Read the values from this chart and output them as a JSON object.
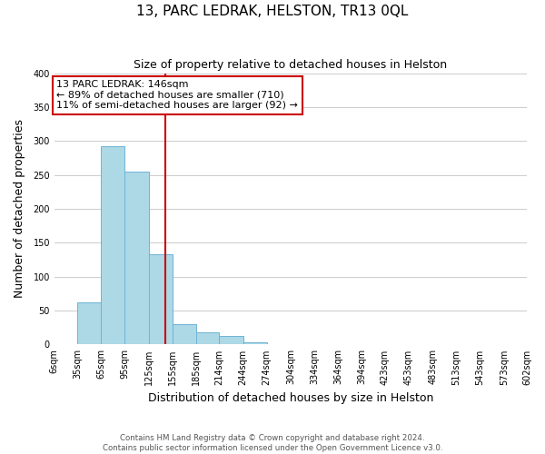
{
  "title": "13, PARC LEDRAK, HELSTON, TR13 0QL",
  "subtitle": "Size of property relative to detached houses in Helston",
  "xlabel": "Distribution of detached houses by size in Helston",
  "ylabel": "Number of detached properties",
  "bar_left_edges": [
    6,
    35,
    65,
    95,
    125,
    155,
    185,
    214,
    244,
    274,
    304,
    334,
    364,
    394,
    423,
    453,
    483,
    513,
    543,
    573
  ],
  "bar_widths": [
    29,
    30,
    30,
    30,
    30,
    30,
    29,
    30,
    30,
    30,
    30,
    30,
    30,
    29,
    30,
    30,
    30,
    30,
    30,
    29
  ],
  "bar_heights": [
    0,
    62,
    292,
    255,
    133,
    30,
    18,
    12,
    3,
    0,
    0,
    0,
    0,
    0,
    0,
    1,
    0,
    0,
    0,
    0
  ],
  "bar_color": "#add8e6",
  "bar_edgecolor": "#6cb4d8",
  "tick_labels": [
    "6sqm",
    "35sqm",
    "65sqm",
    "95sqm",
    "125sqm",
    "155sqm",
    "185sqm",
    "214sqm",
    "244sqm",
    "274sqm",
    "304sqm",
    "334sqm",
    "364sqm",
    "394sqm",
    "423sqm",
    "453sqm",
    "483sqm",
    "513sqm",
    "543sqm",
    "573sqm",
    "602sqm"
  ],
  "tick_positions": [
    6,
    35,
    65,
    95,
    125,
    155,
    185,
    214,
    244,
    274,
    304,
    334,
    364,
    394,
    423,
    453,
    483,
    513,
    543,
    573,
    602
  ],
  "ylim": [
    0,
    400
  ],
  "yticks": [
    0,
    50,
    100,
    150,
    200,
    250,
    300,
    350,
    400
  ],
  "vline_x": 146,
  "vline_color": "#cc0000",
  "annotation_line1": "13 PARC LEDRAK: 146sqm",
  "annotation_line2": "← 89% of detached houses are smaller (710)",
  "annotation_line3": "11% of semi-detached houses are larger (92) →",
  "footer_line1": "Contains HM Land Registry data © Crown copyright and database right 2024.",
  "footer_line2": "Contains public sector information licensed under the Open Government Licence v3.0.",
  "background_color": "#ffffff",
  "grid_color": "#cccccc"
}
